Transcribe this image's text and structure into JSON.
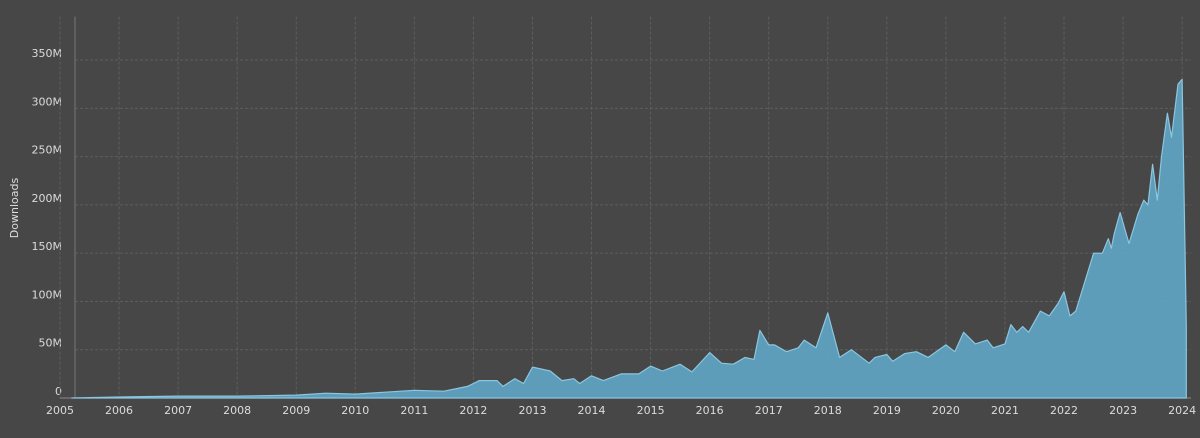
{
  "chart_data": {
    "type": "area",
    "ylabel": "Downloads",
    "color": "#5fa6c6",
    "x": [
      2005.2,
      2006,
      2007,
      2008,
      2009,
      2009.5,
      2010,
      2010.5,
      2011,
      2011.5,
      2011.9,
      2012.1,
      2012.4,
      2012.5,
      2012.7,
      2012.85,
      2013,
      2013.3,
      2013.5,
      2013.7,
      2013.8,
      2014,
      2014.2,
      2014.5,
      2014.8,
      2015,
      2015.2,
      2015.5,
      2015.7,
      2016,
      2016.2,
      2016.4,
      2016.6,
      2016.75,
      2016.85,
      2017,
      2017.1,
      2017.3,
      2017.5,
      2017.6,
      2017.8,
      2018,
      2018.2,
      2018.4,
      2018.7,
      2018.8,
      2019,
      2019.1,
      2019.3,
      2019.5,
      2019.7,
      2020,
      2020.15,
      2020.3,
      2020.5,
      2020.7,
      2020.8,
      2021,
      2021.1,
      2021.2,
      2021.3,
      2021.4,
      2021.6,
      2021.75,
      2021.9,
      2022,
      2022.1,
      2022.2,
      2022.5,
      2022.65,
      2022.75,
      2022.8,
      2022.85,
      2022.95,
      2023.1,
      2023.25,
      2023.35,
      2023.42,
      2023.5,
      2023.58,
      2023.65,
      2023.75,
      2023.82,
      2023.93,
      2024.0,
      2024.07
    ],
    "values": [
      0,
      1000000,
      2000000,
      2000000,
      3000000,
      5000000,
      4000000,
      6000000,
      8000000,
      7000000,
      12000000,
      18000000,
      18000000,
      12000000,
      20000000,
      15000000,
      32000000,
      28000000,
      18000000,
      20000000,
      15000000,
      23000000,
      18000000,
      25000000,
      25000000,
      33000000,
      28000000,
      35000000,
      27000000,
      47000000,
      36000000,
      35000000,
      42000000,
      40000000,
      70000000,
      55000000,
      55000000,
      48000000,
      52000000,
      60000000,
      52000000,
      88000000,
      42000000,
      50000000,
      36000000,
      42000000,
      45000000,
      38000000,
      46000000,
      48000000,
      42000000,
      55000000,
      48000000,
      68000000,
      56000000,
      60000000,
      52000000,
      56000000,
      76000000,
      68000000,
      74000000,
      68000000,
      90000000,
      85000000,
      98000000,
      110000000,
      85000000,
      90000000,
      150000000,
      150000000,
      165000000,
      155000000,
      170000000,
      192000000,
      160000000,
      190000000,
      205000000,
      200000000,
      242000000,
      205000000,
      250000000,
      295000000,
      270000000,
      325000000,
      330000000,
      75000000
    ],
    "xlim": [
      2005,
      2024.15
    ],
    "ylim": [
      0,
      395000000
    ],
    "xticks": [
      2005,
      2006,
      2007,
      2008,
      2009,
      2010,
      2011,
      2012,
      2013,
      2014,
      2015,
      2016,
      2017,
      2018,
      2019,
      2020,
      2021,
      2022,
      2023,
      2024
    ],
    "yticks": [
      0,
      {
        "value": 50000000,
        "label": "50M"
      },
      {
        "value": 100000000,
        "label": "100M"
      },
      {
        "value": 150000000,
        "label": "150M"
      },
      {
        "value": 200000000,
        "label": "200M"
      },
      {
        "value": 250000000,
        "label": "250M"
      },
      {
        "value": 300000000,
        "label": "300M"
      },
      {
        "value": 350000000,
        "label": "350M"
      }
    ],
    "grid": true
  }
}
